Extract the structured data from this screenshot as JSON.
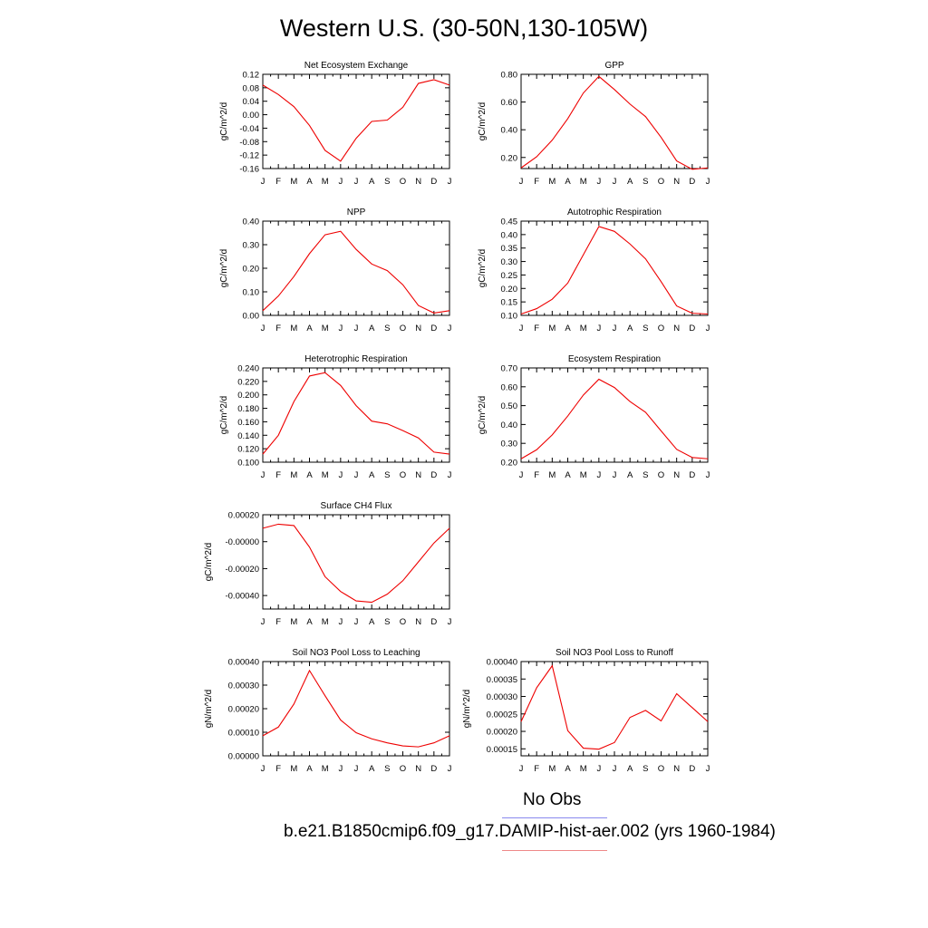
{
  "title": "Western U.S. (30-50N,130-105W)",
  "months": [
    "J",
    "F",
    "M",
    "A",
    "M",
    "J",
    "J",
    "A",
    "S",
    "O",
    "N",
    "D",
    "J"
  ],
  "legend": {
    "obs_label": "No Obs",
    "obs_color": "#8888ee",
    "model_label": "b.e21.B1850cmip6.f09_g17.DAMIP-hist-aer.002 (yrs 1960-1984)",
    "model_color": "#ee8888"
  },
  "line_color": "#ee0000",
  "chart_data": [
    {
      "type": "line",
      "title": "Net Ecosystem Exchange",
      "ylabel": "gC/m^2/d",
      "ylim": [
        -0.16,
        0.12
      ],
      "yticks": [
        "0.12",
        "0.08",
        "0.04",
        "0.00",
        "-0.04",
        "-0.08",
        "-0.12",
        "-0.16"
      ],
      "ytick_values": [
        0.12,
        0.08,
        0.04,
        0.0,
        -0.04,
        -0.08,
        -0.12,
        -0.16
      ],
      "values": [
        0.088,
        0.06,
        0.024,
        -0.032,
        -0.106,
        -0.138,
        -0.07,
        -0.02,
        -0.016,
        0.022,
        0.093,
        0.104,
        0.088
      ]
    },
    {
      "type": "line",
      "title": "GPP",
      "ylabel": "gC/m^2/d",
      "ylim": [
        0.12,
        0.8
      ],
      "yticks": [
        "0.80",
        "0.60",
        "0.40",
        "0.20"
      ],
      "ytick_values": [
        0.8,
        0.6,
        0.4,
        0.2
      ],
      "values": [
        0.125,
        0.205,
        0.325,
        0.48,
        0.665,
        0.785,
        0.69,
        0.585,
        0.495,
        0.345,
        0.175,
        0.115,
        0.125
      ]
    },
    {
      "type": "line",
      "title": "NPP",
      "ylabel": "gC/m^2/d",
      "ylim": [
        0.0,
        0.4
      ],
      "yticks": [
        "0.40",
        "0.30",
        "0.20",
        "0.10",
        "0.00"
      ],
      "ytick_values": [
        0.4,
        0.3,
        0.2,
        0.1,
        0.0
      ],
      "values": [
        0.02,
        0.082,
        0.165,
        0.262,
        0.342,
        0.357,
        0.28,
        0.218,
        0.19,
        0.13,
        0.042,
        0.01,
        0.02
      ]
    },
    {
      "type": "line",
      "title": "Autotrophic Respiration",
      "ylabel": "gC/m^2/d",
      "ylim": [
        0.1,
        0.45
      ],
      "yticks": [
        "0.45",
        "0.40",
        "0.35",
        "0.30",
        "0.25",
        "0.20",
        "0.15",
        "0.10"
      ],
      "ytick_values": [
        0.45,
        0.4,
        0.35,
        0.3,
        0.25,
        0.2,
        0.15,
        0.1
      ],
      "values": [
        0.105,
        0.125,
        0.16,
        0.22,
        0.325,
        0.43,
        0.412,
        0.365,
        0.31,
        0.225,
        0.135,
        0.108,
        0.105
      ]
    },
    {
      "type": "line",
      "title": "Heterotrophic Respiration",
      "ylabel": "gC/m^2/d",
      "ylim": [
        0.1,
        0.24
      ],
      "yticks": [
        "0.240",
        "0.220",
        "0.200",
        "0.180",
        "0.160",
        "0.140",
        "0.120",
        "0.100"
      ],
      "ytick_values": [
        0.24,
        0.22,
        0.2,
        0.18,
        0.16,
        0.14,
        0.12,
        0.1
      ],
      "values": [
        0.112,
        0.14,
        0.19,
        0.228,
        0.233,
        0.214,
        0.184,
        0.161,
        0.157,
        0.147,
        0.136,
        0.115,
        0.112
      ]
    },
    {
      "type": "line",
      "title": "Ecosystem Respiration",
      "ylabel": "gC/m^2/d",
      "ylim": [
        0.2,
        0.7
      ],
      "yticks": [
        "0.70",
        "0.60",
        "0.50",
        "0.40",
        "0.30",
        "0.20"
      ],
      "ytick_values": [
        0.7,
        0.6,
        0.5,
        0.4,
        0.3,
        0.2
      ],
      "values": [
        0.218,
        0.266,
        0.345,
        0.445,
        0.556,
        0.64,
        0.596,
        0.522,
        0.465,
        0.366,
        0.268,
        0.225,
        0.218
      ]
    },
    {
      "type": "line",
      "title": "Surface CH4 Flux",
      "ylabel": "gC/m^2/d",
      "ylim": [
        -0.0005,
        0.0002
      ],
      "yticks": [
        "0.00020",
        "-0.00000",
        "-0.00020",
        "-0.00040"
      ],
      "ytick_values": [
        0.0002,
        0.0,
        -0.0002,
        -0.0004
      ],
      "values": [
        0.0001,
        0.00013,
        0.00012,
        -4e-05,
        -0.00026,
        -0.00037,
        -0.00044,
        -0.00045,
        -0.00039,
        -0.00029,
        -0.00015,
        -1e-05,
        0.0001
      ]
    },
    {
      "type": "line",
      "title": "Soil NO3 Pool Loss to Leaching",
      "ylabel": "gN/m^2/d",
      "ylim": [
        0.0,
        0.0004
      ],
      "yticks": [
        "0.00040",
        "0.00030",
        "0.00020",
        "0.00010",
        "0.00000"
      ],
      "ytick_values": [
        0.0004,
        0.0003,
        0.0002,
        0.0001,
        0.0
      ],
      "values": [
        8.5e-05,
        0.000122,
        0.00022,
        0.000362,
        0.000255,
        0.000152,
        9.8e-05,
        7.2e-05,
        5.5e-05,
        4.2e-05,
        3.8e-05,
        5.5e-05,
        8.5e-05
      ]
    },
    {
      "type": "line",
      "title": "Soil NO3 Pool Loss to Runoff",
      "ylabel": "gN/m^2/d",
      "ylim": [
        0.00013,
        0.0004
      ],
      "yticks": [
        "0.00040",
        "0.00035",
        "0.00030",
        "0.00025",
        "0.00020",
        "0.00015"
      ],
      "ytick_values": [
        0.0004,
        0.00035,
        0.0003,
        0.00025,
        0.0002,
        0.00015
      ],
      "values": [
        0.000228,
        0.000325,
        0.000388,
        0.000202,
        0.000152,
        0.000149,
        0.000168,
        0.00024,
        0.00026,
        0.00023,
        0.000308,
        0.000268,
        0.000228
      ]
    }
  ]
}
